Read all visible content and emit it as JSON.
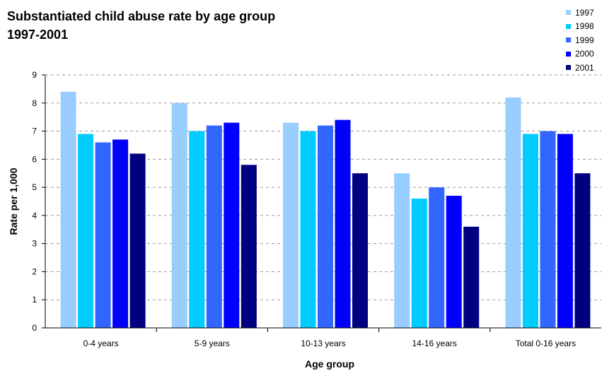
{
  "chart_data": {
    "type": "bar",
    "title": "Substantiated child abuse rate by age group",
    "subtitle": "1997-2001",
    "xlabel": "Age group",
    "ylabel": "Rate per 1,000",
    "ylim": [
      0,
      9
    ],
    "yticks": [
      "0",
      "1",
      "2",
      "3",
      "4",
      "5",
      "6",
      "7",
      "8",
      "9"
    ],
    "grid": true,
    "legend_position": "top-right",
    "categories": [
      "0-4 years",
      "5-9 years",
      "10-13 years",
      "14-16 years",
      "Total 0-16 years"
    ],
    "series": [
      {
        "name": "1997",
        "color": "#99ccff",
        "values": [
          8.4,
          8.0,
          7.3,
          5.5,
          8.2
        ]
      },
      {
        "name": "1998",
        "color": "#00ccff",
        "values": [
          6.9,
          7.0,
          7.0,
          4.6,
          6.9
        ]
      },
      {
        "name": "1999",
        "color": "#3366ff",
        "values": [
          6.6,
          7.2,
          7.2,
          5.0,
          7.0
        ]
      },
      {
        "name": "2000",
        "color": "#0000ff",
        "values": [
          6.7,
          7.3,
          7.4,
          4.7,
          6.9
        ]
      },
      {
        "name": "2001",
        "color": "#000080",
        "values": [
          6.2,
          5.8,
          5.5,
          3.6,
          5.5
        ]
      }
    ]
  }
}
